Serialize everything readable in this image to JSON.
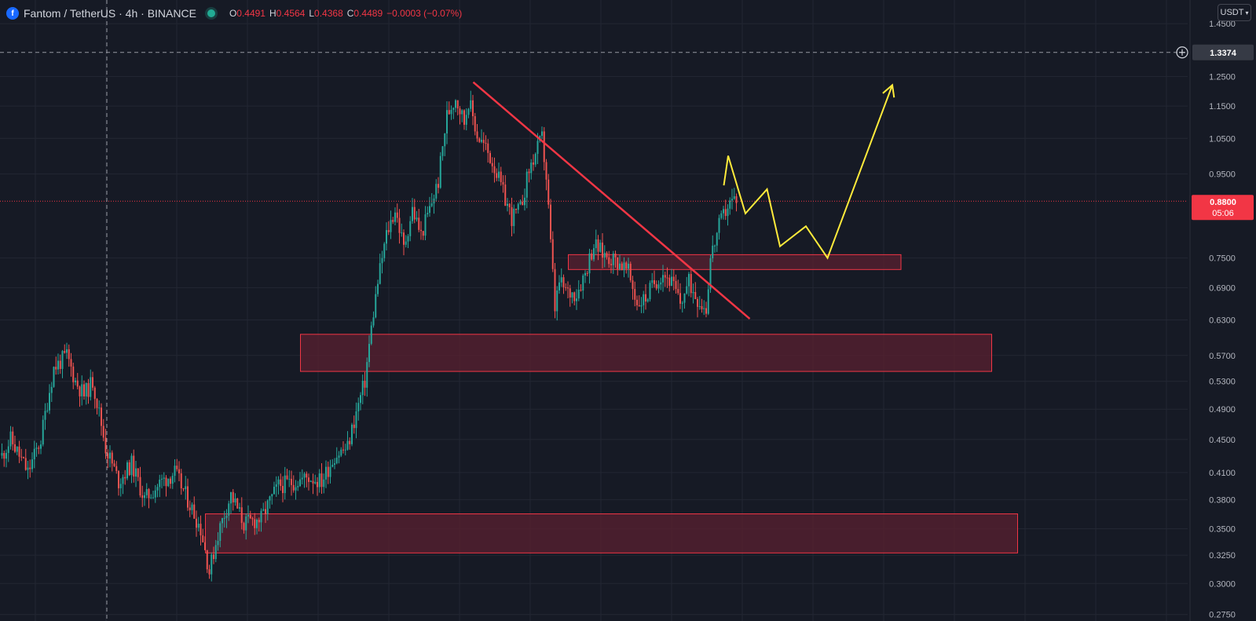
{
  "header": {
    "symbol": "Fantom / TetherUS · 4h · BINANCE",
    "coin_icon": "fantom-coin-icon",
    "ohlc": {
      "o_label": "O",
      "o_value": "0.4491",
      "h_label": "H",
      "h_value": "0.4564",
      "l_label": "L",
      "l_value": "0.4368",
      "c_label": "C",
      "c_value": "0.4489",
      "change": "−0.0003 (−0.07%)"
    }
  },
  "currency_button": {
    "label": "USDT",
    "icon": "chevron-down-icon"
  },
  "colors": {
    "background": "#161a25",
    "grid": "#232733",
    "up": "#26a69a",
    "down": "#ef5350",
    "zone_fill": "#5a2030",
    "zone_border": "#f23645",
    "trendline": "#f23645",
    "projection": "#ffeb3b",
    "price_badge": "#f23645"
  },
  "chart_data": {
    "type": "candlestick",
    "scale": "log",
    "ylim": [
      0.27,
      1.55
    ],
    "y_ticks": [
      "1.4500",
      "1.2500",
      "1.1500",
      "1.0500",
      "0.9500",
      "0.7500",
      "0.6900",
      "0.6300",
      "0.5700",
      "0.5300",
      "0.4900",
      "0.4500",
      "0.4100",
      "0.3800",
      "0.3500",
      "0.3250",
      "0.3000",
      "0.2750"
    ],
    "crosshair": {
      "price": "1.3374",
      "icon": "plus-circle-icon"
    },
    "last_price": {
      "price": "0.8800",
      "countdown": "05:06"
    },
    "price_path": [
      [
        0,
        0.43
      ],
      [
        2,
        0.45
      ],
      [
        6,
        0.41
      ],
      [
        9,
        0.45
      ],
      [
        12,
        0.55
      ],
      [
        15,
        0.57
      ],
      [
        17,
        0.53
      ],
      [
        19,
        0.51
      ],
      [
        21,
        0.53
      ],
      [
        24,
        0.44
      ],
      [
        27,
        0.4
      ],
      [
        30,
        0.42
      ],
      [
        33,
        0.38
      ],
      [
        37,
        0.4
      ],
      [
        40,
        0.41
      ],
      [
        43,
        0.38
      ],
      [
        46,
        0.35
      ],
      [
        48,
        0.31
      ],
      [
        50,
        0.345
      ],
      [
        53,
        0.385
      ],
      [
        56,
        0.355
      ],
      [
        60,
        0.36
      ],
      [
        64,
        0.395
      ],
      [
        68,
        0.4
      ],
      [
        71,
        0.405
      ],
      [
        74,
        0.4
      ],
      [
        77,
        0.43
      ],
      [
        80,
        0.44
      ],
      [
        84,
        0.53
      ],
      [
        87,
        0.7
      ],
      [
        89,
        0.8
      ],
      [
        91,
        0.86
      ],
      [
        93,
        0.77
      ],
      [
        95,
        0.86
      ],
      [
        97,
        0.8
      ],
      [
        99,
        0.86
      ],
      [
        101,
        0.93
      ],
      [
        103,
        1.12
      ],
      [
        105,
        1.18
      ],
      [
        107,
        1.1
      ],
      [
        108,
        1.17
      ],
      [
        110,
        1.06
      ],
      [
        112,
        1.02
      ],
      [
        114,
        0.97
      ],
      [
        116,
        0.9
      ],
      [
        118,
        0.84
      ],
      [
        120,
        0.86
      ],
      [
        122,
        0.96
      ],
      [
        124,
        1.02
      ],
      [
        125,
        1.05
      ],
      [
        126,
        0.94
      ],
      [
        127,
        0.78
      ],
      [
        128,
        0.65
      ],
      [
        129,
        0.7
      ],
      [
        131,
        0.68
      ],
      [
        133,
        0.68
      ],
      [
        135,
        0.72
      ],
      [
        137,
        0.78
      ],
      [
        139,
        0.76
      ],
      [
        141,
        0.75
      ],
      [
        143,
        0.74
      ],
      [
        145,
        0.72
      ],
      [
        147,
        0.66
      ],
      [
        149,
        0.67
      ],
      [
        151,
        0.7
      ],
      [
        153,
        0.72
      ],
      [
        155,
        0.7
      ],
      [
        157,
        0.66
      ],
      [
        159,
        0.7
      ],
      [
        161,
        0.67
      ],
      [
        163,
        0.65
      ],
      [
        164,
        0.75
      ],
      [
        166,
        0.82
      ],
      [
        168,
        0.87
      ],
      [
        170,
        0.89
      ]
    ],
    "trendline": [
      [
        109,
        1.23
      ],
      [
        173,
        0.632
      ]
    ],
    "resistance_zone": {
      "x": [
        131,
        208
      ],
      "y": [
        0.726,
        0.757
      ]
    },
    "support_zones": [
      {
        "x": [
          69,
          229
        ],
        "y": [
          0.545,
          0.605
        ]
      },
      {
        "x": [
          47,
          235
        ],
        "y": [
          0.327,
          0.365
        ]
      }
    ],
    "projection": [
      [
        167,
        0.92
      ],
      [
        168,
        1.0
      ],
      [
        172,
        0.85
      ],
      [
        177,
        0.91
      ],
      [
        180,
        0.775
      ],
      [
        186,
        0.82
      ],
      [
        191,
        0.75
      ],
      [
        206,
        1.22
      ]
    ],
    "x_count": 266
  }
}
